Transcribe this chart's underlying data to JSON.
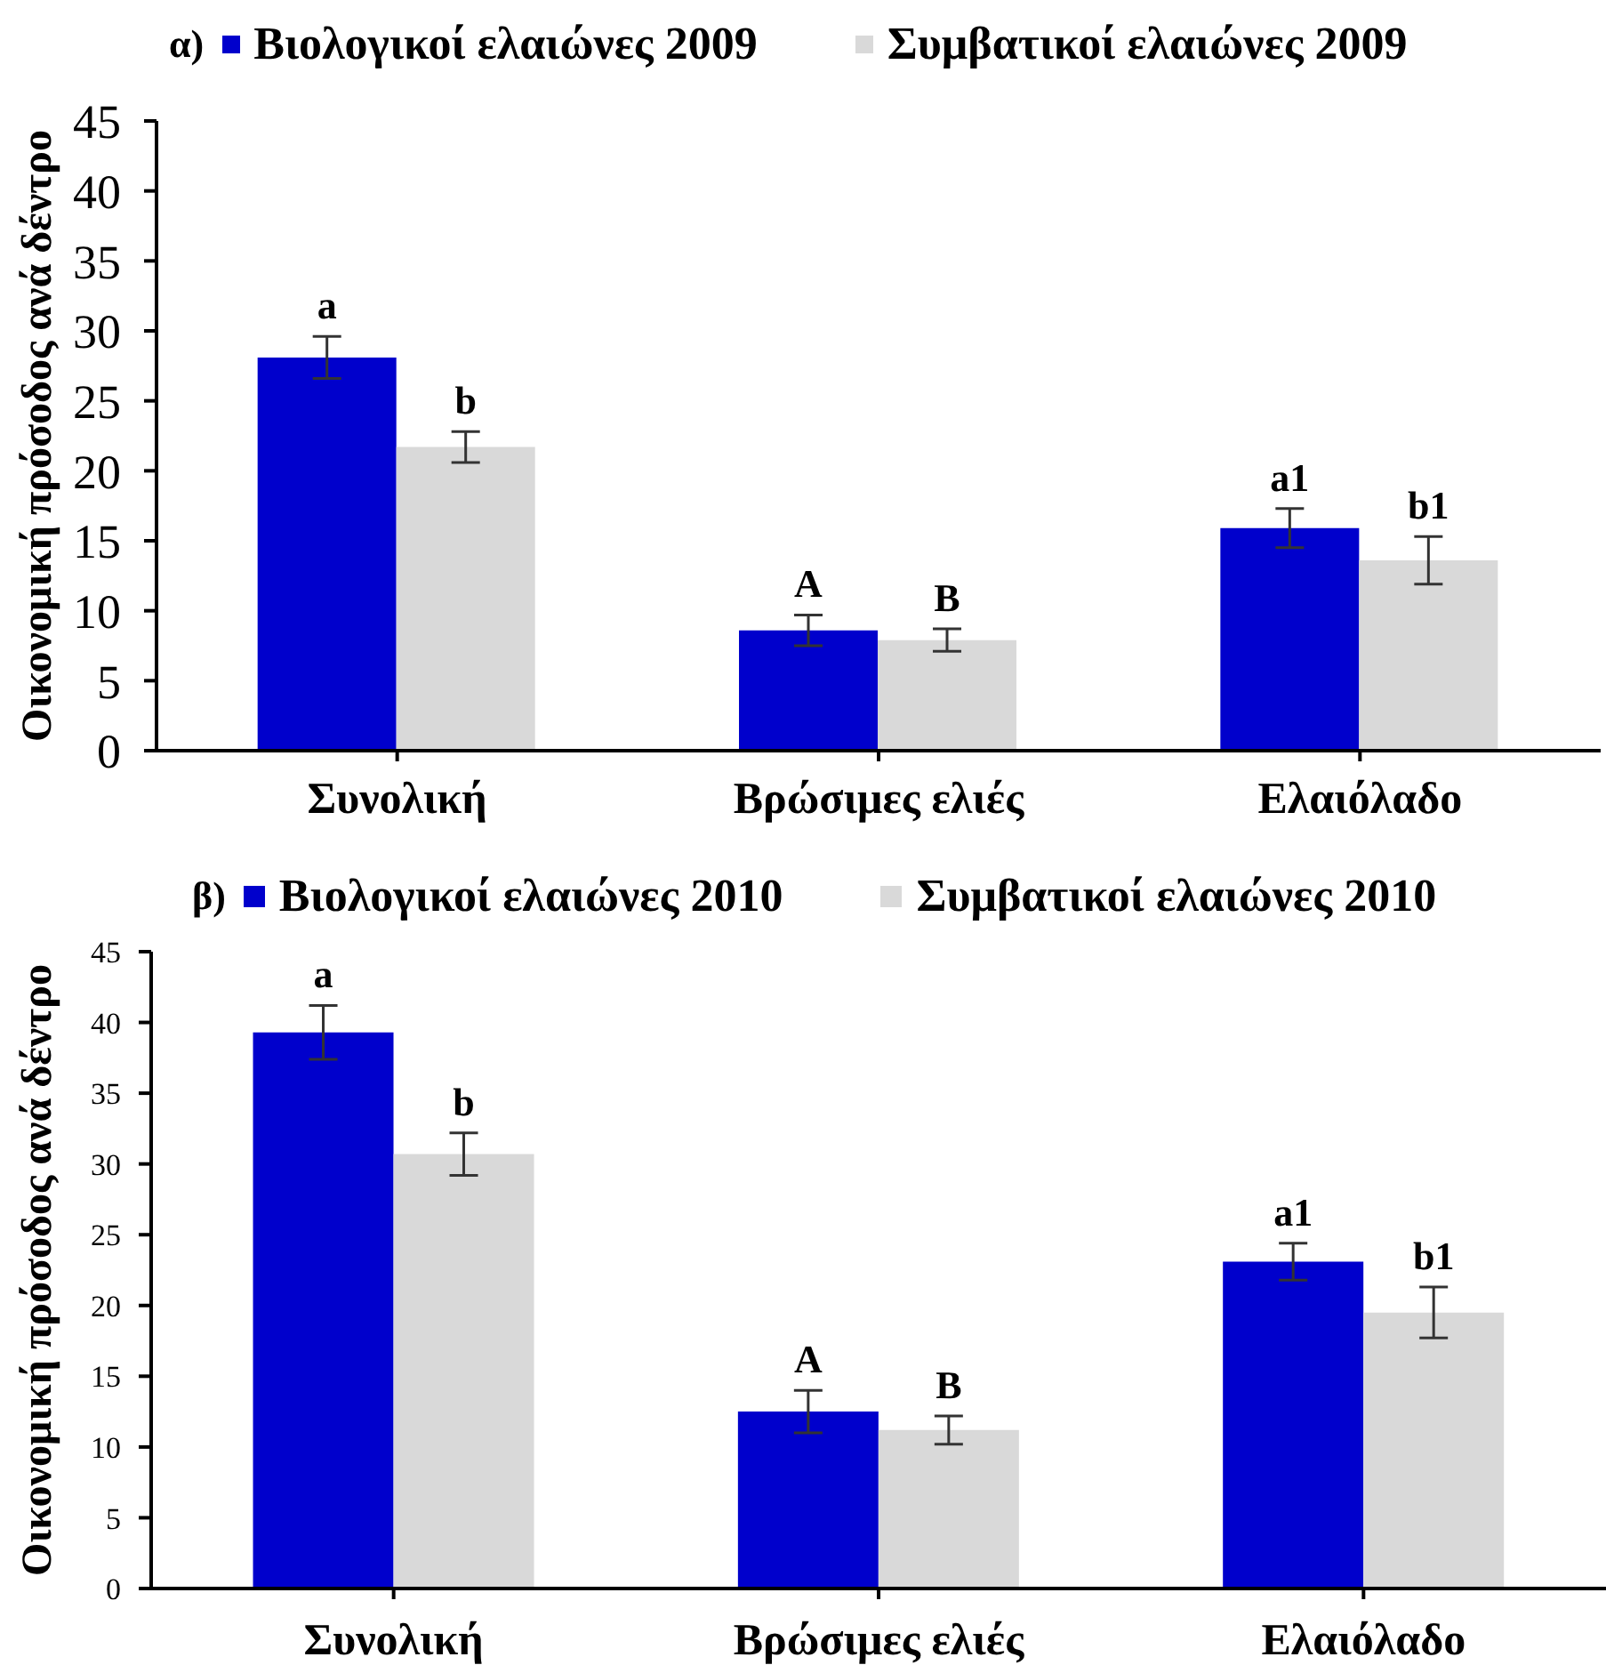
{
  "chart_data": [
    {
      "type": "bar",
      "title": "α)",
      "ylabel": "Οικονομική πρόσοδος ανά δέντρο",
      "categories": [
        "Συνολική",
        "Βρώσιμες ελιές",
        "Ελαιόλαδο"
      ],
      "series": [
        {
          "name": "Βιολογικοί ελαιώνες 2009",
          "color": "#0000cc",
          "values": [
            28.1,
            8.6,
            15.9
          ],
          "errors": [
            1.5,
            1.1,
            1.4
          ],
          "value_labels": [
            "a",
            "A",
            "a1"
          ]
        },
        {
          "name": "Συμβατικοί ελαιώνες 2009",
          "color": "#d9d9d9",
          "values": [
            21.7,
            7.9,
            13.6
          ],
          "errors": [
            1.1,
            0.8,
            1.7
          ],
          "value_labels": [
            "b",
            "B",
            "b1"
          ]
        }
      ],
      "ylim": [
        0,
        45
      ],
      "yticks": [
        0,
        5,
        10,
        15,
        20,
        25,
        30,
        35,
        40,
        45
      ],
      "legend": "top"
    },
    {
      "type": "bar",
      "title": "β)",
      "ylabel": "Οικονομική πρόσοδος ανά δέντρο",
      "categories": [
        "Συνολική",
        "Βρώσιμες ελιές",
        "Ελαιόλαδο"
      ],
      "series": [
        {
          "name": "Βιολογικοί ελαιώνες 2010",
          "color": "#0000cc",
          "values": [
            39.3,
            12.5,
            23.1
          ],
          "errors": [
            1.9,
            1.5,
            1.3
          ],
          "value_labels": [
            "a",
            "A",
            "a1"
          ]
        },
        {
          "name": "Συμβατικοί ελαιώνες 2010",
          "color": "#d9d9d9",
          "values": [
            30.7,
            11.2,
            19.5
          ],
          "errors": [
            1.5,
            1.0,
            1.8
          ],
          "value_labels": [
            "b",
            "B",
            "b1"
          ]
        }
      ],
      "ylim": [
        0,
        45
      ],
      "yticks": [
        0,
        5,
        10,
        15,
        20,
        25,
        30,
        35,
        40,
        45
      ],
      "legend": "top"
    }
  ]
}
